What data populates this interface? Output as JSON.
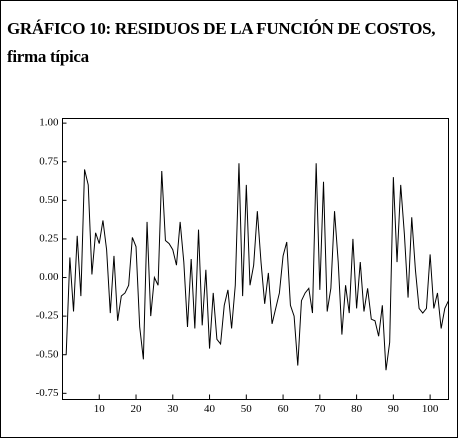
{
  "chart_data": {
    "type": "line",
    "title": "GRÁFICO 10: RESIDUOS DE LA FUNCIÓN DE COSTOS, firma típica",
    "x": [
      1,
      2,
      3,
      4,
      5,
      6,
      7,
      8,
      9,
      10,
      11,
      12,
      13,
      14,
      15,
      16,
      17,
      18,
      19,
      20,
      21,
      22,
      23,
      24,
      25,
      26,
      27,
      28,
      29,
      30,
      31,
      32,
      33,
      34,
      35,
      36,
      37,
      38,
      39,
      40,
      41,
      42,
      43,
      44,
      45,
      46,
      47,
      48,
      49,
      50,
      51,
      52,
      53,
      54,
      55,
      56,
      57,
      58,
      59,
      60,
      61,
      62,
      63,
      64,
      65,
      66,
      67,
      68,
      69,
      70,
      71,
      72,
      73,
      74,
      75,
      76,
      77,
      78,
      79,
      80,
      81,
      82,
      83,
      84,
      85,
      86,
      87,
      88,
      89,
      90,
      91,
      92,
      93,
      94,
      95,
      96,
      97,
      98,
      99,
      100,
      101,
      102,
      103,
      104,
      105
    ],
    "series": [
      {
        "color": "#000000",
        "values": [
          -0.5,
          0.13,
          -0.22,
          0.27,
          -0.12,
          0.7,
          0.6,
          0.02,
          0.29,
          0.22,
          0.37,
          0.18,
          -0.23,
          0.14,
          -0.28,
          -0.12,
          -0.1,
          -0.05,
          0.26,
          0.2,
          -0.32,
          -0.53,
          0.36,
          -0.25,
          0.0,
          -0.05,
          0.69,
          0.24,
          0.22,
          0.18,
          0.08,
          0.36,
          0.1,
          -0.32,
          0.12,
          -0.33,
          0.31,
          -0.31,
          0.05,
          -0.46,
          -0.1,
          -0.4,
          -0.43,
          -0.18,
          -0.08,
          -0.33,
          -0.05,
          0.74,
          -0.12,
          0.6,
          -0.05,
          0.08,
          0.43,
          0.1,
          -0.17,
          0.03,
          -0.3,
          -0.2,
          -0.1,
          0.14,
          0.23,
          -0.18,
          -0.25,
          -0.57,
          -0.15,
          -0.1,
          -0.07,
          -0.23,
          0.74,
          -0.08,
          0.62,
          -0.22,
          -0.07,
          0.43,
          0.1,
          -0.37,
          -0.05,
          -0.23,
          0.25,
          -0.2,
          0.1,
          -0.22,
          -0.07,
          -0.27,
          -0.28,
          -0.38,
          -0.18,
          -0.6,
          -0.42,
          0.65,
          0.1,
          0.6,
          0.28,
          -0.13,
          0.39,
          0.05,
          -0.2,
          -0.23,
          -0.2,
          0.15,
          -0.2,
          -0.1,
          -0.33,
          -0.2,
          -0.15
        ]
      }
    ],
    "xlim": [
      0,
      105
    ],
    "xticks": [
      10,
      20,
      30,
      40,
      50,
      60,
      70,
      80,
      90,
      100
    ],
    "ylim": [
      -0.79,
      1.03
    ],
    "yticks": [
      {
        "value": 1,
        "label": "1.00"
      },
      0.75,
      {
        "value": 0.5,
        "label": "0.50"
      },
      0.25,
      {
        "value": 0,
        "label": "0.00"
      },
      -0.25,
      {
        "value": -0.5,
        "label": "-0.50"
      },
      -0.75
    ]
  }
}
